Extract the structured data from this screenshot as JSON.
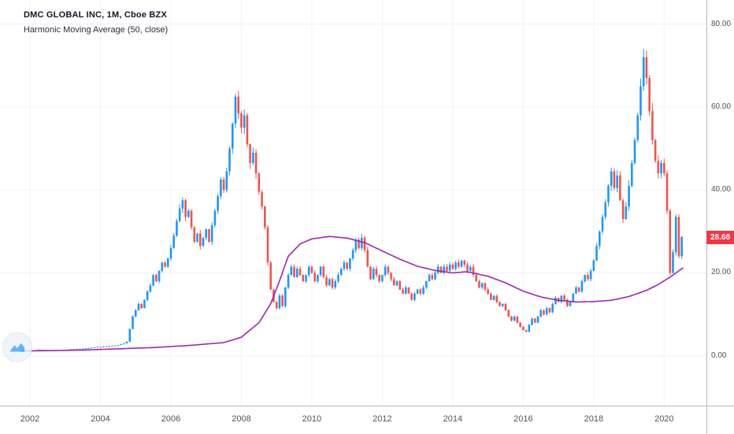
{
  "header": {
    "symbol_title": "DMC GLOBAL INC, 1M, Cboe BZX",
    "indicator_label": "Harmonic Moving Average (50, close)"
  },
  "price_axis": {
    "tick_labels": [
      "0.00",
      "20.00",
      "40.00",
      "60.00",
      "80.00"
    ],
    "tick_values": [
      0,
      20,
      40,
      60,
      80
    ],
    "last_price_label": "28.68",
    "last_price_value": 28.68,
    "badge_color": "#f23645"
  },
  "time_axis": {
    "tick_labels": [
      "2002",
      "2004",
      "2006",
      "2008",
      "2010",
      "2012",
      "2014",
      "2016",
      "2018",
      "2020"
    ],
    "tick_values": [
      2002,
      2004,
      2006,
      2008,
      2010,
      2012,
      2014,
      2016,
      2018,
      2020
    ]
  },
  "chart_data": {
    "type": "candlestick",
    "title": "DMC GLOBAL INC, 1M, Cboe BZX",
    "interval": "1M",
    "exchange": "Cboe BZX",
    "grid": true,
    "xlim": [
      2001.15,
      2021.2
    ],
    "ylim": [
      -12,
      85.8
    ],
    "start": {
      "year": 2001,
      "month": 10
    },
    "closes": [
      1.2,
      1.3,
      1.25,
      1.35,
      1.3,
      1.4,
      1.5,
      1.45,
      1.4,
      1.3,
      1.35,
      1.25,
      1.3,
      1.4,
      1.45,
      1.4,
      1.5,
      1.6,
      1.55,
      1.65,
      1.7,
      1.75,
      1.8,
      1.9,
      2.0,
      2.1,
      2.2,
      2.1,
      2.3,
      2.2,
      2.4,
      2.5,
      2.4,
      2.6,
      2.8,
      3.0,
      3.4,
      6.5,
      9.5,
      11.0,
      12.5,
      11.5,
      13.5,
      15.5,
      17.0,
      19.5,
      18.0,
      20.5,
      22.5,
      21.5,
      23.5,
      26.0,
      29.0,
      32.5,
      35.5,
      37.5,
      33.5,
      35.0,
      31.0,
      27.5,
      29.5,
      26.5,
      28.5,
      30.5,
      27.5,
      31.5,
      35.0,
      38.5,
      42.5,
      40.0,
      44.5,
      50.0,
      56.0,
      62.5,
      58.5,
      55.0,
      58.0,
      51.0,
      46.5,
      49.0,
      44.0,
      39.5,
      36.0,
      31.0,
      22.5,
      16.0,
      13.0,
      11.5,
      14.5,
      12.0,
      16.5,
      19.5,
      21.5,
      19.0,
      21.0,
      19.5,
      18.0,
      19.5,
      21.5,
      20.0,
      18.0,
      19.5,
      21.5,
      19.0,
      17.0,
      18.5,
      16.5,
      18.0,
      19.5,
      21.0,
      22.5,
      21.0,
      23.5,
      25.5,
      28.0,
      26.0,
      28.5,
      25.5,
      21.5,
      18.5,
      21.0,
      19.5,
      18.0,
      19.5,
      21.5,
      20.0,
      18.5,
      17.0,
      18.0,
      16.0,
      15.0,
      16.5,
      15.0,
      13.5,
      15.0,
      16.0,
      15.0,
      16.5,
      18.0,
      19.5,
      18.5,
      20.0,
      21.5,
      20.0,
      21.5,
      20.5,
      22.0,
      21.0,
      22.5,
      21.5,
      23.0,
      22.0,
      20.5,
      21.5,
      19.5,
      18.0,
      16.5,
      17.5,
      16.0,
      15.0,
      13.5,
      14.5,
      13.0,
      12.0,
      12.5,
      11.0,
      9.5,
      8.5,
      9.5,
      8.0,
      7.0,
      6.2,
      5.8,
      7.5,
      9.0,
      8.0,
      9.5,
      11.0,
      10.0,
      11.5,
      10.5,
      12.5,
      14.0,
      13.0,
      14.5,
      13.5,
      12.0,
      13.0,
      15.0,
      16.5,
      15.5,
      18.0,
      19.5,
      18.5,
      20.5,
      23.0,
      26.5,
      30.0,
      33.5,
      37.0,
      41.0,
      44.5,
      40.5,
      43.5,
      37.5,
      33.0,
      36.0,
      41.0,
      46.5,
      52.0,
      58.0,
      65.0,
      72.0,
      67.0,
      59.0,
      52.0,
      47.0,
      44.0,
      46.5,
      44.0,
      35.0,
      20.0,
      25.0,
      33.5,
      24.0,
      28.68
    ],
    "colors": {
      "up": "#2196f3",
      "down": "#ef5350",
      "grid": "#eef1f6",
      "axis_line": "#b2b5be",
      "axis_text": "#50535e",
      "ma": "#9c27b0"
    },
    "series": [
      {
        "name": "Harmonic Moving Average (50, close)",
        "type": "line",
        "color": "#9c27b0",
        "points": [
          [
            2001.75,
            1.2
          ],
          [
            2002.5,
            1.25
          ],
          [
            2003.5,
            1.4
          ],
          [
            2004.5,
            1.7
          ],
          [
            2005.5,
            2.0
          ],
          [
            2006.5,
            2.5
          ],
          [
            2007.5,
            3.2
          ],
          [
            2008.0,
            4.5
          ],
          [
            2008.5,
            8.0
          ],
          [
            2008.83,
            12.5
          ],
          [
            2009.08,
            18.0
          ],
          [
            2009.33,
            24.0
          ],
          [
            2009.67,
            27.0
          ],
          [
            2010.0,
            28.2
          ],
          [
            2010.5,
            28.8
          ],
          [
            2011.0,
            28.4
          ],
          [
            2011.5,
            27.3
          ],
          [
            2012.0,
            25.3
          ],
          [
            2012.5,
            23.3
          ],
          [
            2013.0,
            21.6
          ],
          [
            2013.5,
            20.6
          ],
          [
            2014.0,
            20.0
          ],
          [
            2014.4,
            20.3
          ],
          [
            2015.0,
            19.2
          ],
          [
            2015.5,
            17.6
          ],
          [
            2016.0,
            15.6
          ],
          [
            2016.5,
            14.2
          ],
          [
            2017.0,
            13.4
          ],
          [
            2017.5,
            13.0
          ],
          [
            2018.0,
            13.1
          ],
          [
            2018.5,
            13.4
          ],
          [
            2019.0,
            14.3
          ],
          [
            2019.5,
            15.8
          ],
          [
            2019.83,
            17.2
          ],
          [
            2020.17,
            19.0
          ],
          [
            2020.55,
            21.3
          ]
        ]
      }
    ]
  },
  "watermark": {
    "label": "tradingview-logo"
  }
}
